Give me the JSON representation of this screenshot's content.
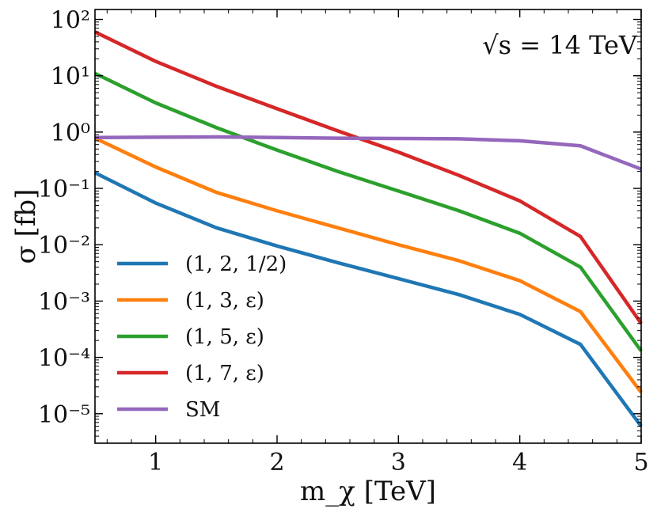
{
  "chart_data": {
    "type": "line",
    "yscale": "log",
    "annotation": "√s = 14 TeV",
    "xlabel": "m_χ [TeV]",
    "ylabel": "σ [fb]",
    "xlim": [
      0.5,
      5.0
    ],
    "ylim": [
      3e-06,
      150
    ],
    "xticks": [
      1,
      2,
      3,
      4,
      5
    ],
    "xtick_labels": [
      "1",
      "2",
      "3",
      "4",
      "5"
    ],
    "yticks_exp": [
      2,
      1,
      0,
      -1,
      -2,
      -3,
      -4,
      -5
    ],
    "ytick_labels": [
      "10²",
      "10¹",
      "10⁰",
      "10⁻¹",
      "10⁻²",
      "10⁻³",
      "10⁻⁴",
      "10⁻⁵"
    ],
    "legend_position": "lower-left",
    "x": [
      0.5,
      1.0,
      1.5,
      2.0,
      2.5,
      3.0,
      3.5,
      4.0,
      4.5,
      5.0
    ],
    "series": [
      {
        "name": "(1, 2, 1/2)",
        "color": "#1f77b4",
        "values": [
          0.19,
          0.055,
          0.02,
          0.0095,
          0.0048,
          0.0025,
          0.0013,
          0.00058,
          0.00017,
          6e-06
        ]
      },
      {
        "name": "(1, 3, ε)",
        "color": "#ff7f0e",
        "values": [
          0.78,
          0.24,
          0.085,
          0.04,
          0.02,
          0.01,
          0.0052,
          0.0023,
          0.00065,
          2.4e-05
        ]
      },
      {
        "name": "(1, 5, ε)",
        "color": "#2ca02c",
        "values": [
          11,
          3.3,
          1.2,
          0.48,
          0.2,
          0.09,
          0.04,
          0.016,
          0.004,
          0.00013
        ]
      },
      {
        "name": "(1, 7, ε)",
        "color": "#d62728",
        "values": [
          60,
          18,
          6.5,
          2.6,
          1.05,
          0.44,
          0.17,
          0.06,
          0.014,
          0.0004
        ]
      },
      {
        "name": "SM",
        "color": "#9467bd",
        "values": [
          0.8,
          0.81,
          0.82,
          0.8,
          0.78,
          0.77,
          0.76,
          0.7,
          0.57,
          0.22
        ]
      }
    ]
  }
}
